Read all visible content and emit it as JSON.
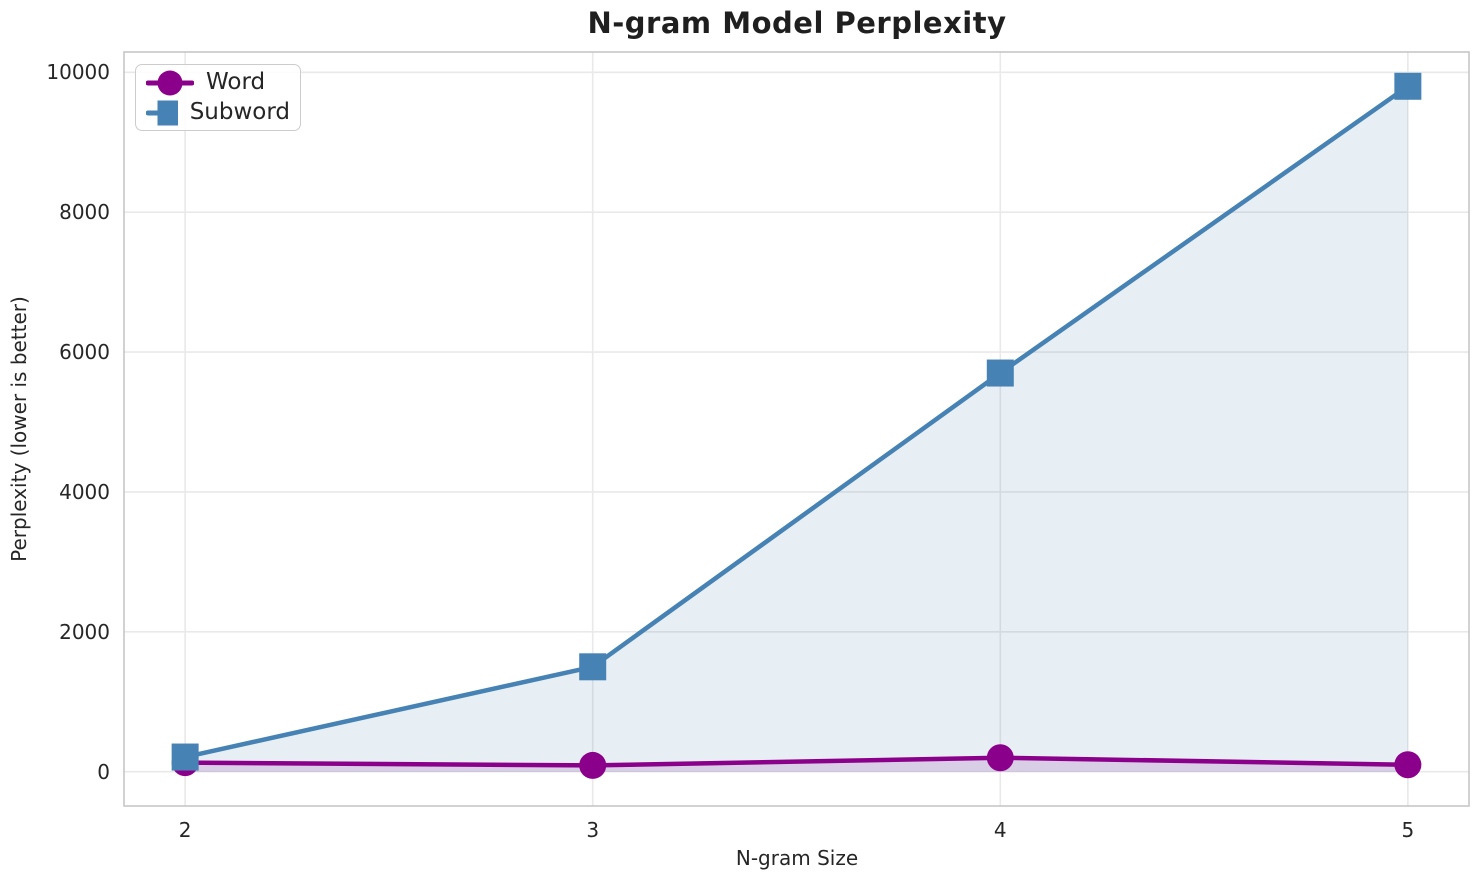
{
  "figure": {
    "title": "N-gram Model Perplexity"
  },
  "chart_data": {
    "type": "line",
    "title": "N-gram Model Perplexity",
    "xlabel": "N-gram Size",
    "ylabel": "Perplexity (lower is better)",
    "x": [
      2,
      3,
      4,
      5
    ],
    "xtick_labels": [
      "2",
      "3",
      "4",
      "5"
    ],
    "ytick_values": [
      0,
      2000,
      4000,
      6000,
      8000,
      10000
    ],
    "ytick_labels": [
      "0",
      "2000",
      "4000",
      "6000",
      "8000",
      "10000"
    ],
    "xlim": [
      1.85,
      5.15
    ],
    "ylim": [
      -490,
      10290
    ],
    "grid": true,
    "legend_position": "upper left",
    "fill_baseline": 0,
    "series": [
      {
        "name": "Word",
        "color": "#8B008B",
        "marker": "circle",
        "fill_opacity": 0.15,
        "values": [
          130,
          90,
          200,
          100
        ]
      },
      {
        "name": "Subword",
        "color": "#4682B4",
        "marker": "square",
        "fill_opacity": 0.13,
        "values": [
          210,
          1500,
          5700,
          9800
        ]
      }
    ]
  },
  "style": {
    "grid_color": "#e9e9e9",
    "border_color": "#c6c6c6",
    "text_color": "#262626",
    "line_width": 4.5,
    "marker_size": 27
  }
}
